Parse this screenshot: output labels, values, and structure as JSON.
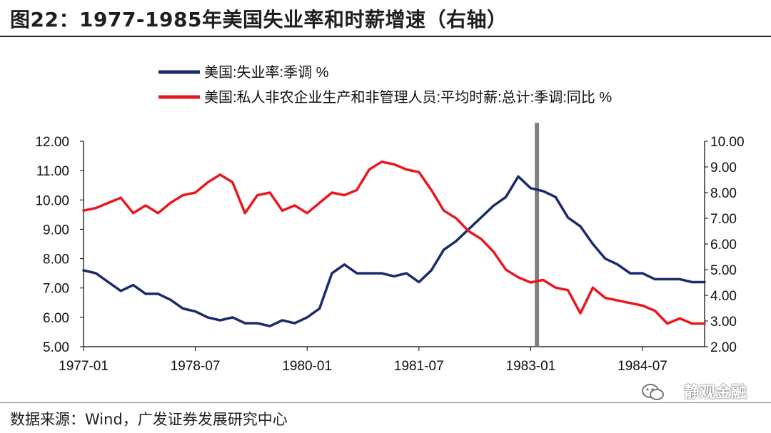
{
  "figure": {
    "title": "图22：1977-1985年美国失业率和时薪增速（右轴）",
    "source": "数据来源：Wind，广发证券发展研究中心",
    "watermark": "静观金融"
  },
  "chart_data": {
    "type": "line",
    "title": "",
    "xlabel": "",
    "ylabel": "",
    "x_tick_labels": [
      "1977-01",
      "1978-07",
      "1980-01",
      "1981-07",
      "1983-01",
      "1984-07"
    ],
    "x_range": [
      "1977-01",
      "1985-05"
    ],
    "y_left": {
      "min": 5,
      "max": 12,
      "ticks": [
        "5.00",
        "6.00",
        "7.00",
        "8.00",
        "9.00",
        "10.00",
        "11.00",
        "12.00"
      ]
    },
    "y_right": {
      "min": 2,
      "max": 10,
      "ticks": [
        "2.00",
        "3.00",
        "4.00",
        "5.00",
        "6.00",
        "7.00",
        "8.00",
        "9.00",
        "10.00"
      ]
    },
    "grid": false,
    "legend_position": "top-left",
    "vertical_marker_date": "1983-02",
    "series": [
      {
        "name": "美国:失业率:季调 %",
        "axis": "left",
        "color": "#1a2b6b",
        "points": [
          [
            "1977-01",
            7.6
          ],
          [
            "1977-03",
            7.5
          ],
          [
            "1977-05",
            7.2
          ],
          [
            "1977-07",
            6.9
          ],
          [
            "1977-09",
            7.1
          ],
          [
            "1977-11",
            6.8
          ],
          [
            "1978-01",
            6.8
          ],
          [
            "1978-03",
            6.6
          ],
          [
            "1978-05",
            6.3
          ],
          [
            "1978-07",
            6.2
          ],
          [
            "1978-09",
            6.0
          ],
          [
            "1978-11",
            5.9
          ],
          [
            "1979-01",
            6.0
          ],
          [
            "1979-03",
            5.8
          ],
          [
            "1979-05",
            5.8
          ],
          [
            "1979-07",
            5.7
          ],
          [
            "1979-09",
            5.9
          ],
          [
            "1979-11",
            5.8
          ],
          [
            "1980-01",
            6.0
          ],
          [
            "1980-03",
            6.3
          ],
          [
            "1980-05",
            7.5
          ],
          [
            "1980-07",
            7.8
          ],
          [
            "1980-09",
            7.5
          ],
          [
            "1980-11",
            7.5
          ],
          [
            "1981-01",
            7.5
          ],
          [
            "1981-03",
            7.4
          ],
          [
            "1981-05",
            7.5
          ],
          [
            "1981-07",
            7.2
          ],
          [
            "1981-09",
            7.6
          ],
          [
            "1981-11",
            8.3
          ],
          [
            "1982-01",
            8.6
          ],
          [
            "1982-03",
            9.0
          ],
          [
            "1982-05",
            9.4
          ],
          [
            "1982-07",
            9.8
          ],
          [
            "1982-09",
            10.1
          ],
          [
            "1982-11",
            10.8
          ],
          [
            "1983-01",
            10.4
          ],
          [
            "1983-03",
            10.3
          ],
          [
            "1983-05",
            10.1
          ],
          [
            "1983-07",
            9.4
          ],
          [
            "1983-09",
            9.1
          ],
          [
            "1983-11",
            8.5
          ],
          [
            "1984-01",
            8.0
          ],
          [
            "1984-03",
            7.8
          ],
          [
            "1984-05",
            7.5
          ],
          [
            "1984-07",
            7.5
          ],
          [
            "1984-09",
            7.3
          ],
          [
            "1984-11",
            7.3
          ],
          [
            "1985-01",
            7.3
          ],
          [
            "1985-03",
            7.2
          ],
          [
            "1985-05",
            7.2
          ]
        ]
      },
      {
        "name": "美国:私人非农企业生产和非管理人员:平均时薪:总计:季调:同比 %",
        "axis": "right",
        "color": "#e8181e",
        "points": [
          [
            "1977-01",
            7.3
          ],
          [
            "1977-03",
            7.4
          ],
          [
            "1977-05",
            7.6
          ],
          [
            "1977-07",
            7.8
          ],
          [
            "1977-09",
            7.2
          ],
          [
            "1977-11",
            7.5
          ],
          [
            "1978-01",
            7.2
          ],
          [
            "1978-03",
            7.6
          ],
          [
            "1978-05",
            7.9
          ],
          [
            "1978-07",
            8.0
          ],
          [
            "1978-09",
            8.4
          ],
          [
            "1978-11",
            8.7
          ],
          [
            "1979-01",
            8.4
          ],
          [
            "1979-03",
            7.2
          ],
          [
            "1979-05",
            7.9
          ],
          [
            "1979-07",
            8.0
          ],
          [
            "1979-09",
            7.3
          ],
          [
            "1979-11",
            7.5
          ],
          [
            "1980-01",
            7.2
          ],
          [
            "1980-03",
            7.6
          ],
          [
            "1980-05",
            8.0
          ],
          [
            "1980-07",
            7.9
          ],
          [
            "1980-09",
            8.1
          ],
          [
            "1980-11",
            8.9
          ],
          [
            "1981-01",
            9.2
          ],
          [
            "1981-03",
            9.1
          ],
          [
            "1981-05",
            8.9
          ],
          [
            "1981-07",
            8.8
          ],
          [
            "1981-09",
            8.1
          ],
          [
            "1981-11",
            7.3
          ],
          [
            "1982-01",
            7.0
          ],
          [
            "1982-03",
            6.5
          ],
          [
            "1982-05",
            6.2
          ],
          [
            "1982-07",
            5.7
          ],
          [
            "1982-09",
            5.0
          ],
          [
            "1982-11",
            4.7
          ],
          [
            "1983-01",
            4.5
          ],
          [
            "1983-03",
            4.6
          ],
          [
            "1983-05",
            4.3
          ],
          [
            "1983-07",
            4.2
          ],
          [
            "1983-09",
            3.3
          ],
          [
            "1983-11",
            4.3
          ],
          [
            "1984-01",
            3.9
          ],
          [
            "1984-03",
            3.8
          ],
          [
            "1984-05",
            3.7
          ],
          [
            "1984-07",
            3.6
          ],
          [
            "1984-09",
            3.4
          ],
          [
            "1984-11",
            2.9
          ],
          [
            "1985-01",
            3.1
          ],
          [
            "1985-03",
            2.9
          ],
          [
            "1985-05",
            2.9
          ]
        ]
      }
    ]
  }
}
